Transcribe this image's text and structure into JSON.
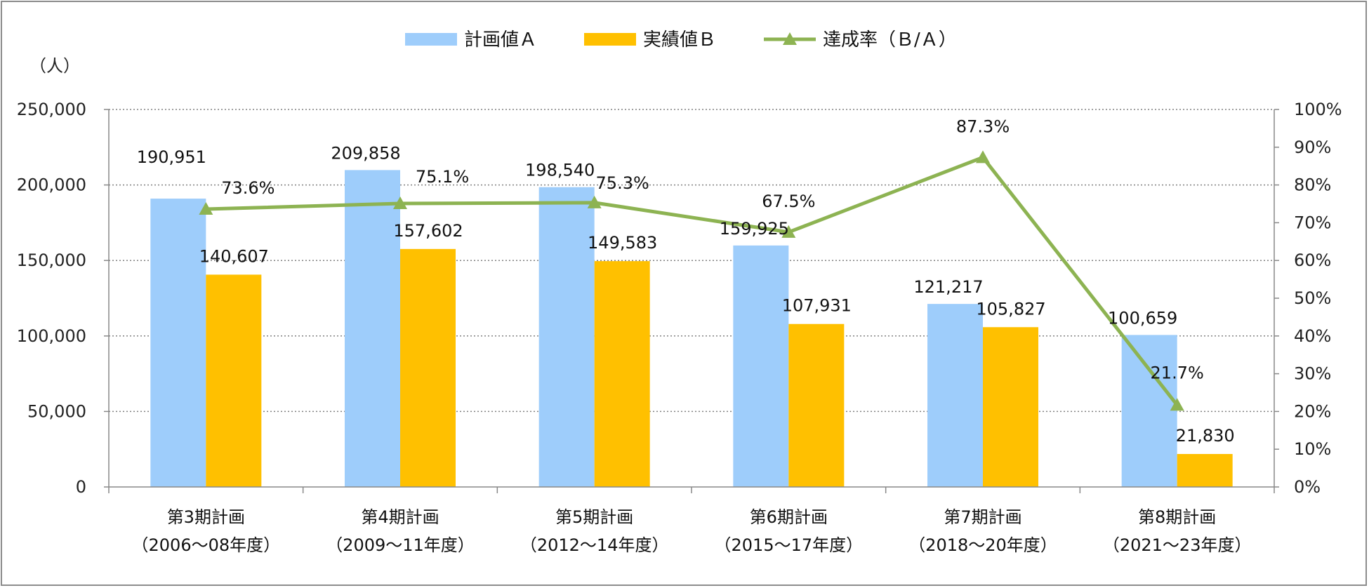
{
  "chart_data": {
    "type": "bar",
    "unit_label": "（人）",
    "categories": [
      {
        "line1": "第3期計画",
        "line2": "（2006～08年度）"
      },
      {
        "line1": "第4期計画",
        "line2": "（2009～11年度）"
      },
      {
        "line1": "第5期計画",
        "line2": "（2012～14年度）"
      },
      {
        "line1": "第6期計画",
        "line2": "（2015～17年度）"
      },
      {
        "line1": "第7期計画",
        "line2": "（2018～20年度）"
      },
      {
        "line1": "第8期計画",
        "line2": "（2021～23年度）"
      }
    ],
    "series": [
      {
        "name": "計画値Ａ",
        "type": "bar",
        "axis": "left",
        "color": "#9ecdfb",
        "values": [
          190951,
          209858,
          198540,
          159925,
          121217,
          100659
        ],
        "labels": [
          "190,951",
          "209,858",
          "198,540",
          "159,925",
          "121,217",
          "100,659"
        ]
      },
      {
        "name": "実績値Ｂ",
        "type": "bar",
        "axis": "left",
        "color": "#ffc000",
        "values": [
          140607,
          157602,
          149583,
          107931,
          105827,
          21830
        ],
        "labels": [
          "140,607",
          "157,602",
          "149,583",
          "107,931",
          "105,827",
          "21,830"
        ]
      },
      {
        "name": "達成率（Ｂ/Ａ）",
        "type": "line",
        "axis": "right",
        "color": "#8db352",
        "values": [
          73.6,
          75.1,
          75.3,
          67.5,
          87.3,
          21.7
        ],
        "labels": [
          "73.6%",
          "75.1%",
          "75.3%",
          "67.5%",
          "87.3%",
          "21.7%"
        ]
      }
    ],
    "y_left": {
      "min": 0,
      "max": 250000,
      "ticks": [
        "0",
        "50,000",
        "100,000",
        "150,000",
        "200,000",
        "250,000"
      ]
    },
    "y_right": {
      "min": 0,
      "max": 100,
      "ticks": [
        "0%",
        "10%",
        "20%",
        "30%",
        "40%",
        "50%",
        "60%",
        "70%",
        "80%",
        "90%",
        "100%"
      ]
    },
    "grid": "horizontal-dotted",
    "legend_position": "top-center"
  }
}
